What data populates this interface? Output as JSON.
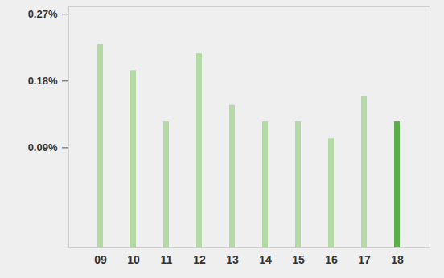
{
  "chart_data": {
    "type": "bar",
    "categories": [
      "09",
      "10",
      "11",
      "12",
      "13",
      "14",
      "15",
      "16",
      "17",
      "18"
    ],
    "values": [
      0.229,
      0.194,
      0.125,
      0.217,
      0.147,
      0.125,
      0.125,
      0.102,
      0.159,
      0.125
    ],
    "colors": [
      "#b3d9a5",
      "#b3d9a5",
      "#b3d9a5",
      "#b3d9a5",
      "#b3d9a5",
      "#b3d9a5",
      "#b3d9a5",
      "#b3d9a5",
      "#b3d9a5",
      "#5cae48"
    ],
    "ylim": [
      -0.045,
      0.28
    ],
    "yticks": [
      {
        "value": 0.09,
        "label": "0.09%"
      },
      {
        "value": 0.18,
        "label": "0.18%"
      },
      {
        "value": 0.27,
        "label": "0.27%"
      }
    ],
    "grid": false
  }
}
